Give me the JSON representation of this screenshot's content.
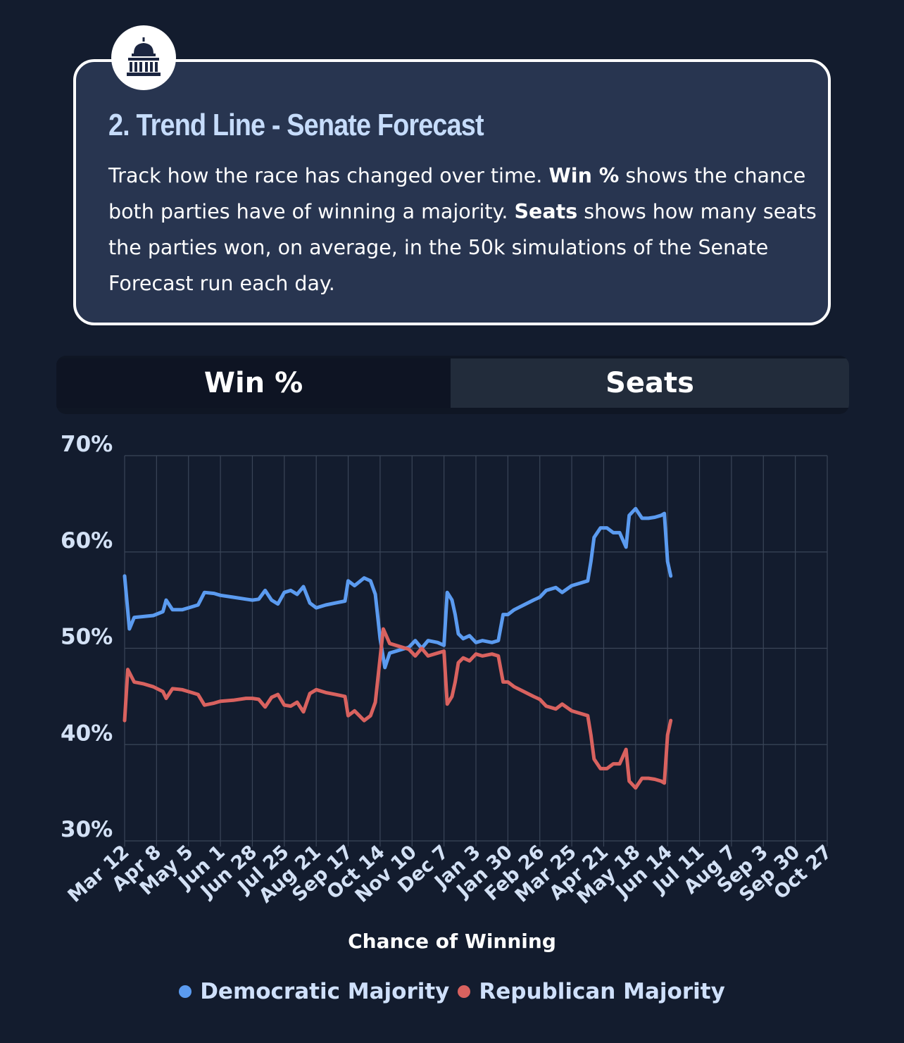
{
  "colors": {
    "democratic": "#5b9bf0",
    "republican": "#d9625f",
    "background": "#131c2e",
    "card": "#283550",
    "title": "#c6dcfb"
  },
  "card": {
    "icon": "capitol-building-icon",
    "title": "2. Trend Line - Senate Forecast",
    "desc_1": "Track how the race has changed over time. ",
    "desc_bold_1": "Win %",
    "desc_2": " shows the chance both parties have of winning a majority. ",
    "desc_bold_2": "Seats",
    "desc_3": " shows how many seats the parties won, on average, in the 50k simulations of the Senate Forecast run each day."
  },
  "tabs": {
    "win_label": "Win %",
    "seats_label": "Seats",
    "selected": "Win %"
  },
  "chart_data": {
    "type": "line",
    "title": "",
    "xlabel": "Chance of Winning",
    "ylabel": "",
    "ylim": [
      30,
      70
    ],
    "y_ticks": [
      "30%",
      "40%",
      "50%",
      "60%",
      "70%"
    ],
    "x_tick_labels": [
      "Mar 12",
      "Apr 8",
      "May 5",
      "Jun 1",
      "Jun 28",
      "Jul 25",
      "Aug 21",
      "Sep 17",
      "Oct 14",
      "Nov 10",
      "Dec 7",
      "Jan 3",
      "Jan 30",
      "Feb 26",
      "Mar 25",
      "Apr 21",
      "May 18",
      "Jun 14",
      "Jul 11",
      "Aug 7",
      "Sep 3",
      "Sep 30",
      "Oct 27"
    ],
    "grid": true,
    "legend_position": "bottom",
    "series": [
      {
        "name": "Democratic Majority",
        "color": "#5b9bf0",
        "values": [
          [
            0,
            57.5
          ],
          [
            0.15,
            52.0
          ],
          [
            0.3,
            53.2
          ],
          [
            0.6,
            53.3
          ],
          [
            0.9,
            53.4
          ],
          [
            1.2,
            53.8
          ],
          [
            1.3,
            55.0
          ],
          [
            1.5,
            54.0
          ],
          [
            1.8,
            54.0
          ],
          [
            2.0,
            54.2
          ],
          [
            2.3,
            54.5
          ],
          [
            2.5,
            55.8
          ],
          [
            2.8,
            55.7
          ],
          [
            3.0,
            55.5
          ],
          [
            3.4,
            55.3
          ],
          [
            3.8,
            55.1
          ],
          [
            4.0,
            55.0
          ],
          [
            4.2,
            55.1
          ],
          [
            4.4,
            56.0
          ],
          [
            4.6,
            55.0
          ],
          [
            4.8,
            54.6
          ],
          [
            5.0,
            55.8
          ],
          [
            5.2,
            56.0
          ],
          [
            5.4,
            55.6
          ],
          [
            5.6,
            56.4
          ],
          [
            5.8,
            54.7
          ],
          [
            6.0,
            54.2
          ],
          [
            6.3,
            54.5
          ],
          [
            6.6,
            54.7
          ],
          [
            6.9,
            54.9
          ],
          [
            7.0,
            57.0
          ],
          [
            7.2,
            56.5
          ],
          [
            7.5,
            57.3
          ],
          [
            7.7,
            57.0
          ],
          [
            7.85,
            55.6
          ],
          [
            8.0,
            51.0
          ],
          [
            8.15,
            48.0
          ],
          [
            8.3,
            49.5
          ],
          [
            8.6,
            49.8
          ],
          [
            8.9,
            50.1
          ],
          [
            9.1,
            50.8
          ],
          [
            9.3,
            50.0
          ],
          [
            9.5,
            50.8
          ],
          [
            9.8,
            50.6
          ],
          [
            10.0,
            50.3
          ],
          [
            10.1,
            55.8
          ],
          [
            10.25,
            55.0
          ],
          [
            10.35,
            53.5
          ],
          [
            10.45,
            51.5
          ],
          [
            10.6,
            51.0
          ],
          [
            10.8,
            51.3
          ],
          [
            11.0,
            50.6
          ],
          [
            11.2,
            50.8
          ],
          [
            11.5,
            50.6
          ],
          [
            11.7,
            50.8
          ],
          [
            11.85,
            53.5
          ],
          [
            12.0,
            53.5
          ],
          [
            12.2,
            54.0
          ],
          [
            12.5,
            54.5
          ],
          [
            12.8,
            55.0
          ],
          [
            13.0,
            55.3
          ],
          [
            13.2,
            56.0
          ],
          [
            13.5,
            56.3
          ],
          [
            13.7,
            55.8
          ],
          [
            14.0,
            56.5
          ],
          [
            14.2,
            56.7
          ],
          [
            14.5,
            57.0
          ],
          [
            14.6,
            59.0
          ],
          [
            14.7,
            61.5
          ],
          [
            14.9,
            62.5
          ],
          [
            15.1,
            62.5
          ],
          [
            15.3,
            62.0
          ],
          [
            15.5,
            62.0
          ],
          [
            15.7,
            60.5
          ],
          [
            15.8,
            63.8
          ],
          [
            16.0,
            64.5
          ],
          [
            16.2,
            63.5
          ],
          [
            16.4,
            63.5
          ],
          [
            16.6,
            63.6
          ],
          [
            16.8,
            63.8
          ],
          [
            16.9,
            64.0
          ],
          [
            17.0,
            59.0
          ],
          [
            17.1,
            57.5
          ]
        ]
      },
      {
        "name": "Republican Majority",
        "color": "#d9625f",
        "values": [
          [
            0,
            42.5
          ],
          [
            0.1,
            47.8
          ],
          [
            0.3,
            46.5
          ],
          [
            0.6,
            46.3
          ],
          [
            0.9,
            46.0
          ],
          [
            1.2,
            45.5
          ],
          [
            1.3,
            44.8
          ],
          [
            1.5,
            45.8
          ],
          [
            1.8,
            45.7
          ],
          [
            2.0,
            45.5
          ],
          [
            2.3,
            45.2
          ],
          [
            2.5,
            44.1
          ],
          [
            2.8,
            44.3
          ],
          [
            3.0,
            44.5
          ],
          [
            3.4,
            44.6
          ],
          [
            3.8,
            44.8
          ],
          [
            4.0,
            44.8
          ],
          [
            4.2,
            44.7
          ],
          [
            4.4,
            43.9
          ],
          [
            4.6,
            44.9
          ],
          [
            4.8,
            45.2
          ],
          [
            5.0,
            44.1
          ],
          [
            5.2,
            44.0
          ],
          [
            5.4,
            44.4
          ],
          [
            5.6,
            43.4
          ],
          [
            5.8,
            45.3
          ],
          [
            6.0,
            45.7
          ],
          [
            6.3,
            45.4
          ],
          [
            6.6,
            45.2
          ],
          [
            6.9,
            45.0
          ],
          [
            7.0,
            43.0
          ],
          [
            7.2,
            43.5
          ],
          [
            7.5,
            42.5
          ],
          [
            7.7,
            43.0
          ],
          [
            7.85,
            44.4
          ],
          [
            8.0,
            49.0
          ],
          [
            8.1,
            52.0
          ],
          [
            8.3,
            50.5
          ],
          [
            8.6,
            50.2
          ],
          [
            8.9,
            49.9
          ],
          [
            9.1,
            49.2
          ],
          [
            9.3,
            50.0
          ],
          [
            9.5,
            49.2
          ],
          [
            9.8,
            49.5
          ],
          [
            10.0,
            49.7
          ],
          [
            10.1,
            44.2
          ],
          [
            10.25,
            45.0
          ],
          [
            10.35,
            46.5
          ],
          [
            10.45,
            48.5
          ],
          [
            10.6,
            49.0
          ],
          [
            10.8,
            48.7
          ],
          [
            11.0,
            49.4
          ],
          [
            11.2,
            49.2
          ],
          [
            11.5,
            49.4
          ],
          [
            11.7,
            49.2
          ],
          [
            11.85,
            46.5
          ],
          [
            12.0,
            46.5
          ],
          [
            12.2,
            46.0
          ],
          [
            12.5,
            45.5
          ],
          [
            12.8,
            45.0
          ],
          [
            13.0,
            44.7
          ],
          [
            13.2,
            44.0
          ],
          [
            13.5,
            43.7
          ],
          [
            13.7,
            44.2
          ],
          [
            14.0,
            43.5
          ],
          [
            14.2,
            43.3
          ],
          [
            14.5,
            43.0
          ],
          [
            14.6,
            41.0
          ],
          [
            14.7,
            38.5
          ],
          [
            14.9,
            37.5
          ],
          [
            15.1,
            37.5
          ],
          [
            15.3,
            38.0
          ],
          [
            15.5,
            38.0
          ],
          [
            15.7,
            39.5
          ],
          [
            15.8,
            36.2
          ],
          [
            16.0,
            35.5
          ],
          [
            16.2,
            36.5
          ],
          [
            16.4,
            36.5
          ],
          [
            16.6,
            36.4
          ],
          [
            16.8,
            36.2
          ],
          [
            16.9,
            36.0
          ],
          [
            17.0,
            41.0
          ],
          [
            17.1,
            42.5
          ]
        ]
      }
    ]
  }
}
